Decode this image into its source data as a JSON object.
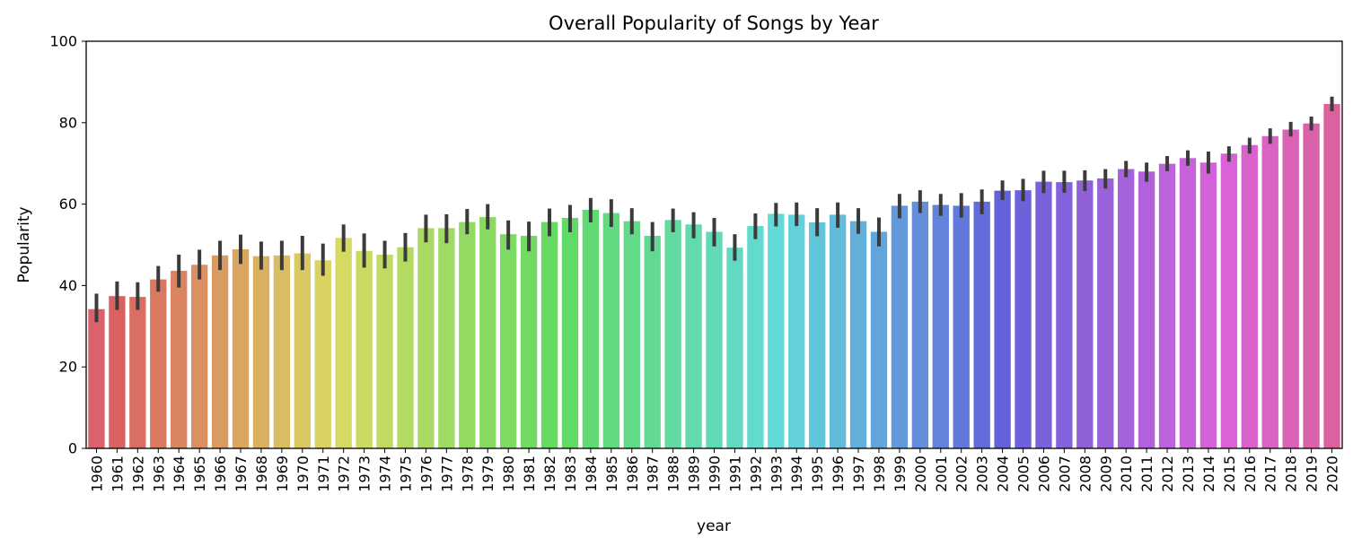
{
  "chart_data": {
    "type": "bar",
    "title": "Overall Popularity of Songs by Year",
    "xlabel": "year",
    "ylabel": "Popularity",
    "ylim": [
      0,
      100
    ],
    "yticks": [
      0,
      20,
      40,
      60,
      80,
      100
    ],
    "error_bars": true,
    "grid": false,
    "bar_palette": "husl",
    "error_bar_color": "#3b3b3b",
    "categories": [
      "1960",
      "1961",
      "1962",
      "1963",
      "1964",
      "1965",
      "1966",
      "1967",
      "1968",
      "1969",
      "1970",
      "1971",
      "1972",
      "1973",
      "1974",
      "1975",
      "1976",
      "1977",
      "1978",
      "1979",
      "1980",
      "1981",
      "1982",
      "1983",
      "1984",
      "1985",
      "1986",
      "1987",
      "1988",
      "1989",
      "1990",
      "1991",
      "1992",
      "1993",
      "1994",
      "1995",
      "1996",
      "1997",
      "1998",
      "1999",
      "2000",
      "2001",
      "2002",
      "2003",
      "2004",
      "2005",
      "2006",
      "2007",
      "2008",
      "2009",
      "2010",
      "2011",
      "2012",
      "2013",
      "2014",
      "2015",
      "2016",
      "2017",
      "2018",
      "2019",
      "2020"
    ],
    "values": [
      34.2,
      37.4,
      37.2,
      41.5,
      43.6,
      45.1,
      47.4,
      48.9,
      47.2,
      47.4,
      47.9,
      46.2,
      51.7,
      48.5,
      47.6,
      49.4,
      54.1,
      54.1,
      55.6,
      56.8,
      52.6,
      52.2,
      55.6,
      56.6,
      58.6,
      57.8,
      55.8,
      52.2,
      56.1,
      55.0,
      53.2,
      49.3,
      54.6,
      57.6,
      57.4,
      55.5,
      57.4,
      55.8,
      53.2,
      59.6,
      60.6,
      59.8,
      59.6,
      60.6,
      63.3,
      63.4,
      65.5,
      65.4,
      65.8,
      66.3,
      68.6,
      68.0,
      69.9,
      71.3,
      70.2,
      72.4,
      74.5,
      76.7,
      78.3,
      79.8,
      84.6
    ],
    "ci_low": [
      31.0,
      34.0,
      34.0,
      38.5,
      39.5,
      41.5,
      43.8,
      45.3,
      43.9,
      43.8,
      43.8,
      42.4,
      48.3,
      44.4,
      44.2,
      45.9,
      50.6,
      50.4,
      52.6,
      53.8,
      48.8,
      48.4,
      52.1,
      53.1,
      55.5,
      54.4,
      52.6,
      48.4,
      53.1,
      51.6,
      49.6,
      46.1,
      51.4,
      54.5,
      54.6,
      52.1,
      54.2,
      52.7,
      49.6,
      56.5,
      57.8,
      57.1,
      56.7,
      57.5,
      61.0,
      60.7,
      62.7,
      62.8,
      63.2,
      63.8,
      66.6,
      65.5,
      68.1,
      69.4,
      67.5,
      70.4,
      72.4,
      74.8,
      76.6,
      78.1,
      82.8
    ],
    "ci_high": [
      38.0,
      41.0,
      40.8,
      44.8,
      47.6,
      48.8,
      51.0,
      52.5,
      50.8,
      51.0,
      52.2,
      50.3,
      55.0,
      52.8,
      51.0,
      52.9,
      57.4,
      57.5,
      58.8,
      60.0,
      56.0,
      55.7,
      58.9,
      59.8,
      61.5,
      61.2,
      59.0,
      55.6,
      58.9,
      58.0,
      56.6,
      52.6,
      57.7,
      60.3,
      60.4,
      59.0,
      60.4,
      59.0,
      56.7,
      62.5,
      63.4,
      62.5,
      62.7,
      63.6,
      65.8,
      66.2,
      68.2,
      68.2,
      68.3,
      68.6,
      70.6,
      70.2,
      71.8,
      73.2,
      72.9,
      74.2,
      76.3,
      78.6,
      80.2,
      81.5,
      86.4
    ]
  }
}
